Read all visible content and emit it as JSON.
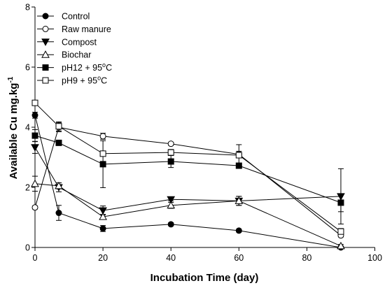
{
  "chart_data": {
    "type": "line",
    "xlabel": "Incubation Time (day)",
    "ylabel": "Available Cu mg.kg",
    "ylabel_sup": "-1",
    "xlim": [
      0,
      100
    ],
    "ylim": [
      0,
      8
    ],
    "xticks": [
      "0",
      "20",
      "40",
      "60",
      "80",
      "100"
    ],
    "yticks": [
      "0",
      "2",
      "4",
      "6",
      "8"
    ],
    "grid": false,
    "legend_position": "top-left",
    "error_bars": true,
    "line_color": "#000000",
    "x": [
      0,
      7,
      20,
      40,
      60,
      90
    ],
    "series": [
      {
        "name": "Control",
        "marker": "circle-filled",
        "values": [
          4.4,
          1.15,
          0.63,
          0.77,
          0.56,
          0.0
        ],
        "errors": [
          0.1,
          0.25,
          0.1,
          0.05,
          0.05,
          0.02
        ]
      },
      {
        "name": "Raw manure",
        "marker": "circle-open",
        "values": [
          1.33,
          4.0,
          3.7,
          3.45,
          3.1,
          0.4
        ],
        "errors": [
          0.05,
          0.15,
          0.1,
          0.05,
          0.1,
          0.05
        ]
      },
      {
        "name": "Compost",
        "marker": "triangle-down-filled",
        "values": [
          3.33,
          2.0,
          1.23,
          1.6,
          1.55,
          1.7
        ],
        "errors": [
          0.2,
          0.15,
          0.15,
          0.05,
          0.15,
          0.92
        ]
      },
      {
        "name": "Biochar",
        "marker": "triangle-up-open",
        "values": [
          2.12,
          2.05,
          1.02,
          1.4,
          1.55,
          0.05
        ],
        "errors": [
          0.25,
          0.1,
          0.08,
          0.1,
          0.15,
          0.05
        ]
      },
      {
        "name": "pH12 + 95",
        "name_sup": "o",
        "name_tail": "C",
        "marker": "square-filled",
        "values": [
          3.72,
          3.48,
          2.77,
          2.86,
          2.72,
          1.49
        ],
        "errors": [
          0.2,
          0.06,
          0.78,
          0.2,
          0.06,
          0.3
        ]
      },
      {
        "name": "pH9 + 95",
        "name_sup": "o",
        "name_tail": "C",
        "marker": "square-open",
        "values": [
          4.81,
          4.03,
          3.12,
          3.16,
          3.07,
          0.53
        ],
        "errors": [
          0.08,
          0.15,
          0.06,
          0.1,
          0.35,
          0.1
        ]
      }
    ]
  }
}
